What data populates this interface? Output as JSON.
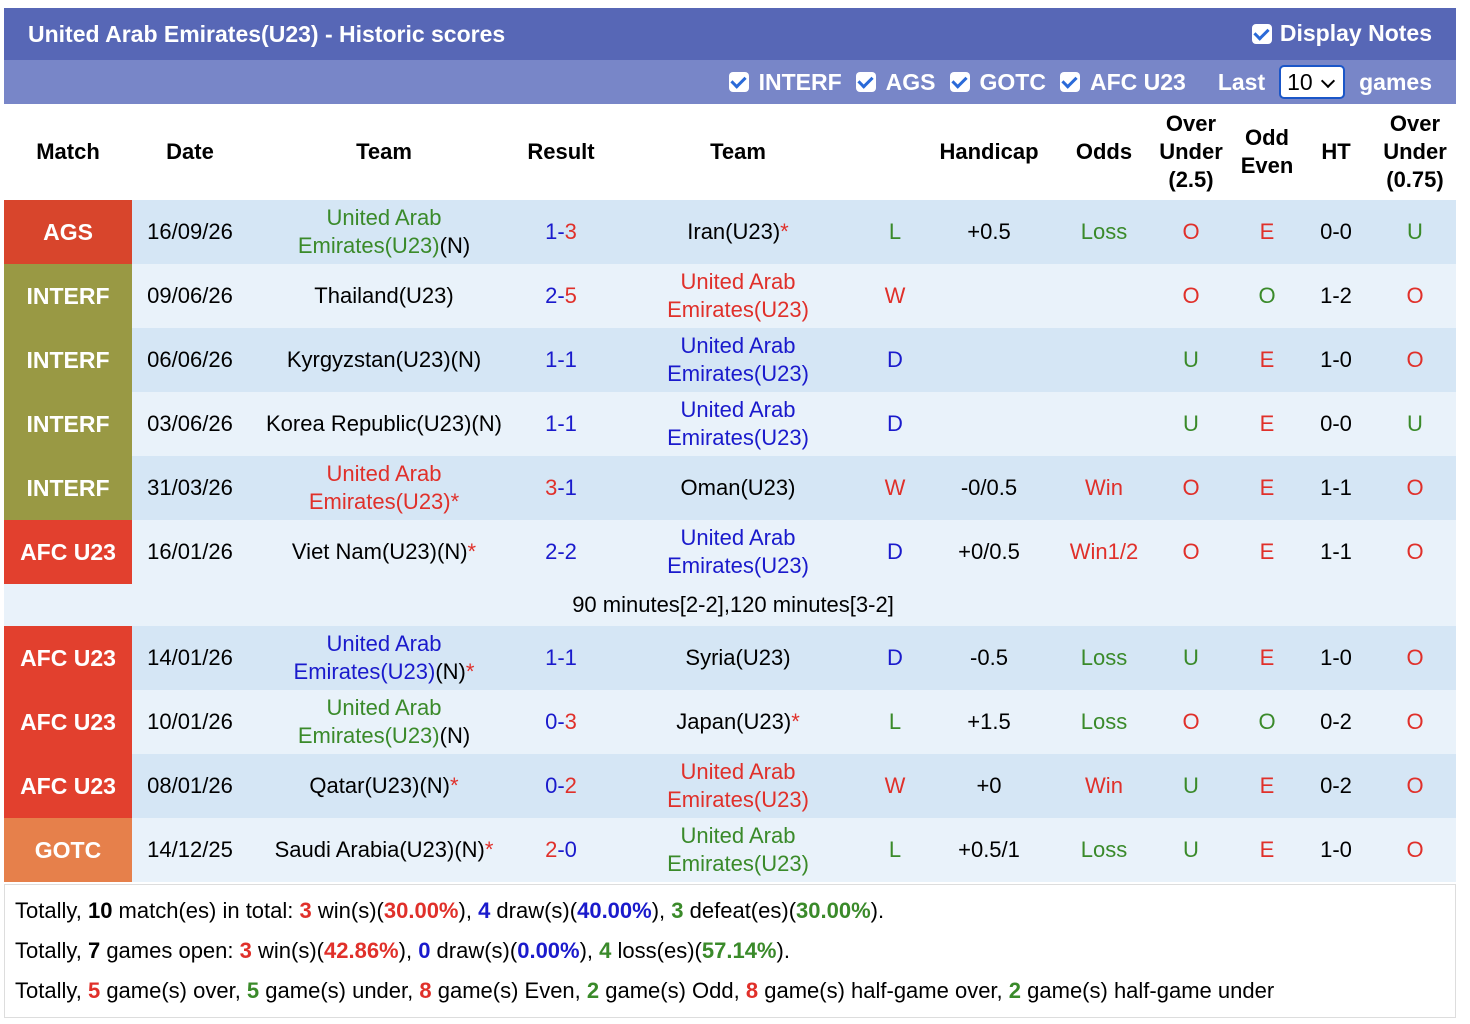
{
  "header": {
    "title": "United Arab Emirates(U23) - Historic scores",
    "display_notes": "Display Notes",
    "filters": [
      "INTERF",
      "AGS",
      "GOTC",
      "AFC U23"
    ],
    "last": "Last",
    "count": "10",
    "games": "games"
  },
  "table": {
    "columns": [
      "Match",
      "Date",
      "Team",
      "Result",
      "Team",
      null,
      "Handicap",
      "Odds",
      "Over Under (2.5)",
      "Odd Even",
      "HT",
      "Over Under (0.75)"
    ],
    "rows": [
      {
        "match": "AGS",
        "color": "#d8452c",
        "date": "16/09/26",
        "home": {
          "name": "United Arab Emirates(U23)",
          "suffix": "(N)"
        },
        "home_score": "1",
        "away_score": "3",
        "away": {
          "name": "Iran(U23)",
          "star": "*"
        },
        "wl": "L",
        "handicap": "+0.5",
        "odds": "Loss",
        "ou": "O",
        "oe": "E",
        "ht": "0-0",
        "ou2": "U"
      },
      {
        "match": "INTERF",
        "color": "#999944",
        "date": "09/06/26",
        "home": {
          "name": "Thailand(U23)"
        },
        "home_score": "2",
        "away_score": "5",
        "away": {
          "name": "United Arab Emirates(U23)"
        },
        "wl": "W",
        "handicap": null,
        "odds": null,
        "ou": "O",
        "oe": "O",
        "ht": "1-2",
        "ou2": "O"
      },
      {
        "match": "INTERF",
        "color": "#999944",
        "date": "06/06/26",
        "home": {
          "name": "Kyrgyzstan(U23)(N)"
        },
        "home_score": "1",
        "away_score": "1",
        "away": {
          "name": "United Arab Emirates(U23)"
        },
        "wl": "D",
        "handicap": null,
        "odds": null,
        "ou": "U",
        "oe": "E",
        "ht": "1-0",
        "ou2": "O"
      },
      {
        "match": "INTERF",
        "color": "#999944",
        "date": "03/06/26",
        "home": {
          "name": "Korea Republic(U23)(N)"
        },
        "home_score": "1",
        "away_score": "1",
        "away": {
          "name": "United Arab Emirates(U23)"
        },
        "wl": "D",
        "handicap": null,
        "odds": null,
        "ou": "U",
        "oe": "E",
        "ht": "0-0",
        "ou2": "U"
      },
      {
        "match": "INTERF",
        "color": "#999944",
        "date": "31/03/26",
        "home": {
          "name": "United Arab Emirates(U23)",
          "star": "*"
        },
        "home_score": "3",
        "away_score": "1",
        "away": {
          "name": "Oman(U23)"
        },
        "wl": "W",
        "handicap": "-0/0.5",
        "odds": "Win",
        "ou": "O",
        "oe": "E",
        "ht": "1-1",
        "ou2": "O"
      },
      {
        "match": "AFC U23",
        "color": "#e2402e",
        "date": "16/01/26",
        "home": {
          "name": "Viet Nam(U23)(N)",
          "star": "*"
        },
        "home_score": "2",
        "away_score": "2",
        "away": {
          "name": "United Arab Emirates(U23)"
        },
        "wl": "D",
        "handicap": "+0/0.5",
        "odds": "Win1/2",
        "ou": "O",
        "oe": "E",
        "ht": "1-1",
        "ou2": "O",
        "note": "90 minutes[2-2],120 minutes[3-2]"
      },
      {
        "match": "AFC U23",
        "color": "#e2402e",
        "date": "14/01/26",
        "home": {
          "name": "United Arab Emirates(U23)",
          "suffix": "(N)",
          "star": "*"
        },
        "home_score": "1",
        "away_score": "1",
        "away": {
          "name": "Syria(U23)"
        },
        "wl": "D",
        "handicap": "-0.5",
        "odds": "Loss",
        "ou": "U",
        "oe": "E",
        "ht": "1-0",
        "ou2": "O"
      },
      {
        "match": "AFC U23",
        "color": "#e2402e",
        "date": "10/01/26",
        "home": {
          "name": "United Arab Emirates(U23)",
          "suffix": "(N)"
        },
        "home_score": "0",
        "away_score": "3",
        "away": {
          "name": "Japan(U23)",
          "star": "*"
        },
        "wl": "L",
        "handicap": "+1.5",
        "odds": "Loss",
        "ou": "O",
        "oe": "O",
        "ht": "0-2",
        "ou2": "O"
      },
      {
        "match": "AFC U23",
        "color": "#e2402e",
        "date": "08/01/26",
        "home": {
          "name": "Qatar(U23)(N)",
          "star": "*"
        },
        "home_score": "0",
        "away_score": "2",
        "away": {
          "name": "United Arab Emirates(U23)"
        },
        "wl": "W",
        "handicap": "+0",
        "odds": "Win",
        "ou": "U",
        "oe": "E",
        "ht": "0-2",
        "ou2": "O"
      },
      {
        "match": "GOTC",
        "color": "#e6804b",
        "date": "14/12/25",
        "home": {
          "name": "Saudi Arabia(U23)(N)",
          "star": "*"
        },
        "home_score": "2",
        "away_score": "0",
        "away": {
          "name": "United Arab Emirates(U23)"
        },
        "wl": "L",
        "handicap": "+0.5/1",
        "odds": "Loss",
        "ou": "U",
        "oe": "E",
        "ht": "1-0",
        "ou2": "O"
      }
    ]
  },
  "footer": [
    [
      {
        "t": "Totally, "
      },
      {
        "t": "10",
        "c": "k"
      },
      {
        "t": " match(es) in total: "
      },
      {
        "t": "3",
        "c": "r"
      },
      {
        "t": " win(s)("
      },
      {
        "t": "30.00%",
        "c": "r"
      },
      {
        "t": "), "
      },
      {
        "t": "4",
        "c": "b"
      },
      {
        "t": " draw(s)("
      },
      {
        "t": "40.00%",
        "c": "b"
      },
      {
        "t": "), "
      },
      {
        "t": "3",
        "c": "g"
      },
      {
        "t": " defeat(es)("
      },
      {
        "t": "30.00%",
        "c": "g"
      },
      {
        "t": ")."
      }
    ],
    [
      {
        "t": "Totally, "
      },
      {
        "t": "7",
        "c": "k"
      },
      {
        "t": " games open: "
      },
      {
        "t": "3",
        "c": "r"
      },
      {
        "t": " win(s)("
      },
      {
        "t": "42.86%",
        "c": "r"
      },
      {
        "t": "), "
      },
      {
        "t": "0",
        "c": "b"
      },
      {
        "t": " draw(s)("
      },
      {
        "t": "0.00%",
        "c": "b"
      },
      {
        "t": "), "
      },
      {
        "t": "4",
        "c": "g"
      },
      {
        "t": " loss(es)("
      },
      {
        "t": "57.14%",
        "c": "g"
      },
      {
        "t": ")."
      }
    ],
    [
      {
        "t": "Totally, "
      },
      {
        "t": "5",
        "c": "r"
      },
      {
        "t": " game(s) over, "
      },
      {
        "t": "5",
        "c": "g"
      },
      {
        "t": " game(s) under, "
      },
      {
        "t": "8",
        "c": "r"
      },
      {
        "t": " game(s) Even, "
      },
      {
        "t": "2",
        "c": "g"
      },
      {
        "t": " game(s) Odd, "
      },
      {
        "t": "8",
        "c": "r"
      },
      {
        "t": " game(s) half-game over, "
      },
      {
        "t": "2",
        "c": "g"
      },
      {
        "t": " game(s) half-game under"
      }
    ]
  ]
}
